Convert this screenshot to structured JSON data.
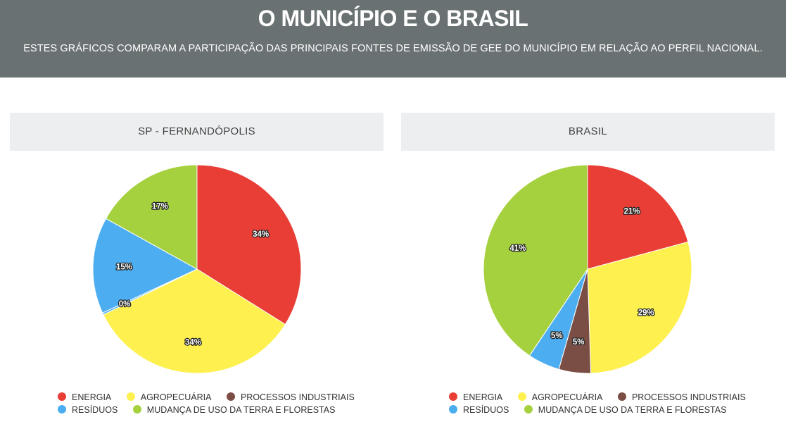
{
  "header": {
    "title": "O MUNICÍPIO E O BRASIL",
    "subtitle": "ESTES GRÁFICOS COMPARAM A PARTICIPAÇÃO DAS PRINCIPAIS FONTES DE EMISSÃO DE GEE DO MUNICÍPIO EM RELAÇÃO AO PERFIL NACIONAL."
  },
  "legend": {
    "energia": "ENERGIA",
    "agropecuaria": "AGROPECUÁRIA",
    "processos": "PROCESSOS INDUSTRIAIS",
    "residuos": "RESÍDUOS",
    "mudanca": "MUDANÇA DE USO DA TERRA E FLORESTAS"
  },
  "colors": {
    "energia": "#e83e36",
    "agropecuaria": "#fdf04f",
    "processos": "#7b4e45",
    "residuos": "#4caef0",
    "mudanca": "#a6d13f"
  },
  "chart_data": [
    {
      "type": "pie",
      "title": "SP - FERNANDÓPOLIS",
      "slices": [
        {
          "name": "ENERGIA",
          "value": 34,
          "label": "34%"
        },
        {
          "name": "AGROPECUÁRIA",
          "value": 34,
          "label": "34%"
        },
        {
          "name": "PROCESSOS INDUSTRIAIS",
          "value": 0,
          "label": ""
        },
        {
          "name": "RESÍDUOS",
          "value": 0.3,
          "label": "0%"
        },
        {
          "name": "RESÍDUOS",
          "value": 15,
          "label": "15%"
        },
        {
          "name": "MUDANÇA DE USO DA TERRA E FLORESTAS",
          "value": 17,
          "label": "17%"
        }
      ]
    },
    {
      "type": "pie",
      "title": "BRASIL",
      "slices": [
        {
          "name": "ENERGIA",
          "value": 21,
          "label": "21%"
        },
        {
          "name": "AGROPECUÁRIA",
          "value": 29,
          "label": "29%"
        },
        {
          "name": "PROCESSOS INDUSTRIAIS",
          "value": 5,
          "label": "5%"
        },
        {
          "name": "RESÍDUOS",
          "value": 5,
          "label": "5%"
        },
        {
          "name": "MUDANÇA DE USO DA TERRA E FLORESTAS",
          "value": 41,
          "label": "41%"
        }
      ]
    }
  ]
}
